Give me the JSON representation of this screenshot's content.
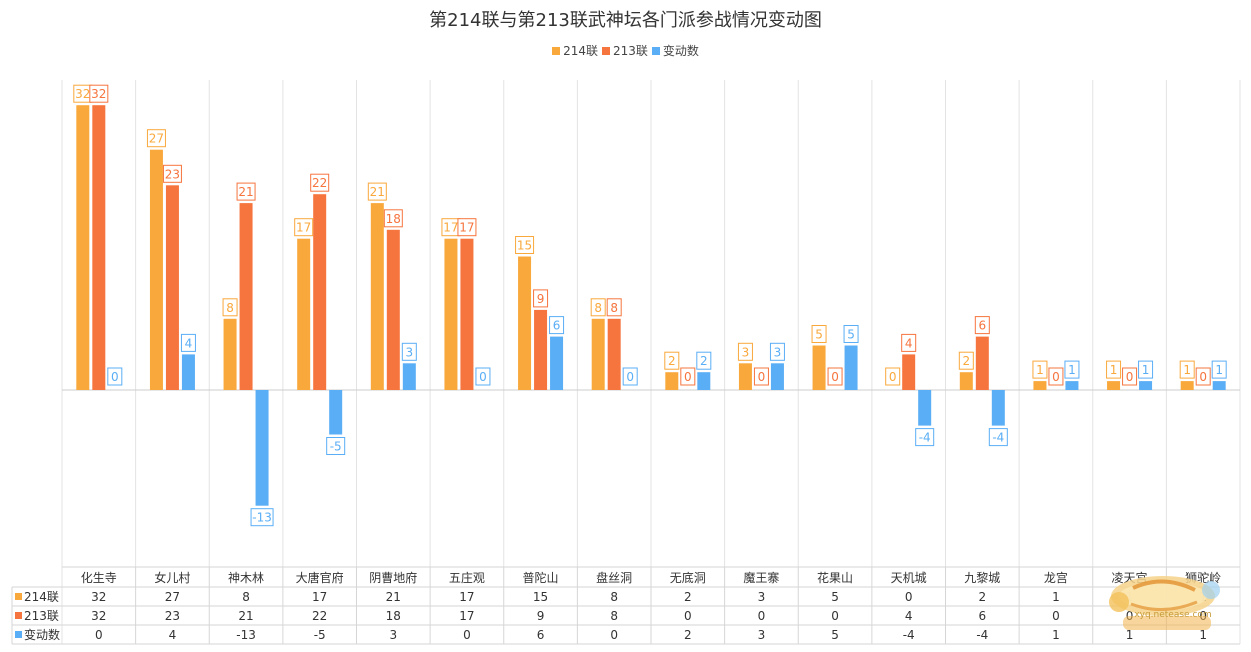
{
  "chart_data": {
    "type": "bar",
    "title": "第214联与第213联武神坛各门派参战情况变动图",
    "categories": [
      "化生寺",
      "女儿村",
      "神木林",
      "大唐官府",
      "阴曹地府",
      "五庄观",
      "普陀山",
      "盘丝洞",
      "无底洞",
      "魔王寨",
      "花果山",
      "天机城",
      "九黎城",
      "龙宫",
      "凌天宫",
      "狮驼岭"
    ],
    "series": [
      {
        "name": "214联",
        "color": "#f9a83c",
        "values": [
          32,
          27,
          8,
          17,
          21,
          17,
          15,
          8,
          2,
          3,
          5,
          0,
          2,
          1,
          1,
          1
        ]
      },
      {
        "name": "213联",
        "color": "#f6743e",
        "values": [
          32,
          23,
          21,
          22,
          18,
          17,
          9,
          8,
          0,
          0,
          0,
          4,
          6,
          0,
          0,
          0
        ]
      },
      {
        "name": "变动数",
        "color": "#5aaef5",
        "values": [
          0,
          4,
          -13,
          -5,
          3,
          0,
          6,
          0,
          2,
          3,
          5,
          -4,
          -4,
          1,
          1,
          1
        ]
      }
    ],
    "legend": "top-center",
    "data_table": true
  },
  "watermark": {
    "text": "xyq.netease.com"
  }
}
